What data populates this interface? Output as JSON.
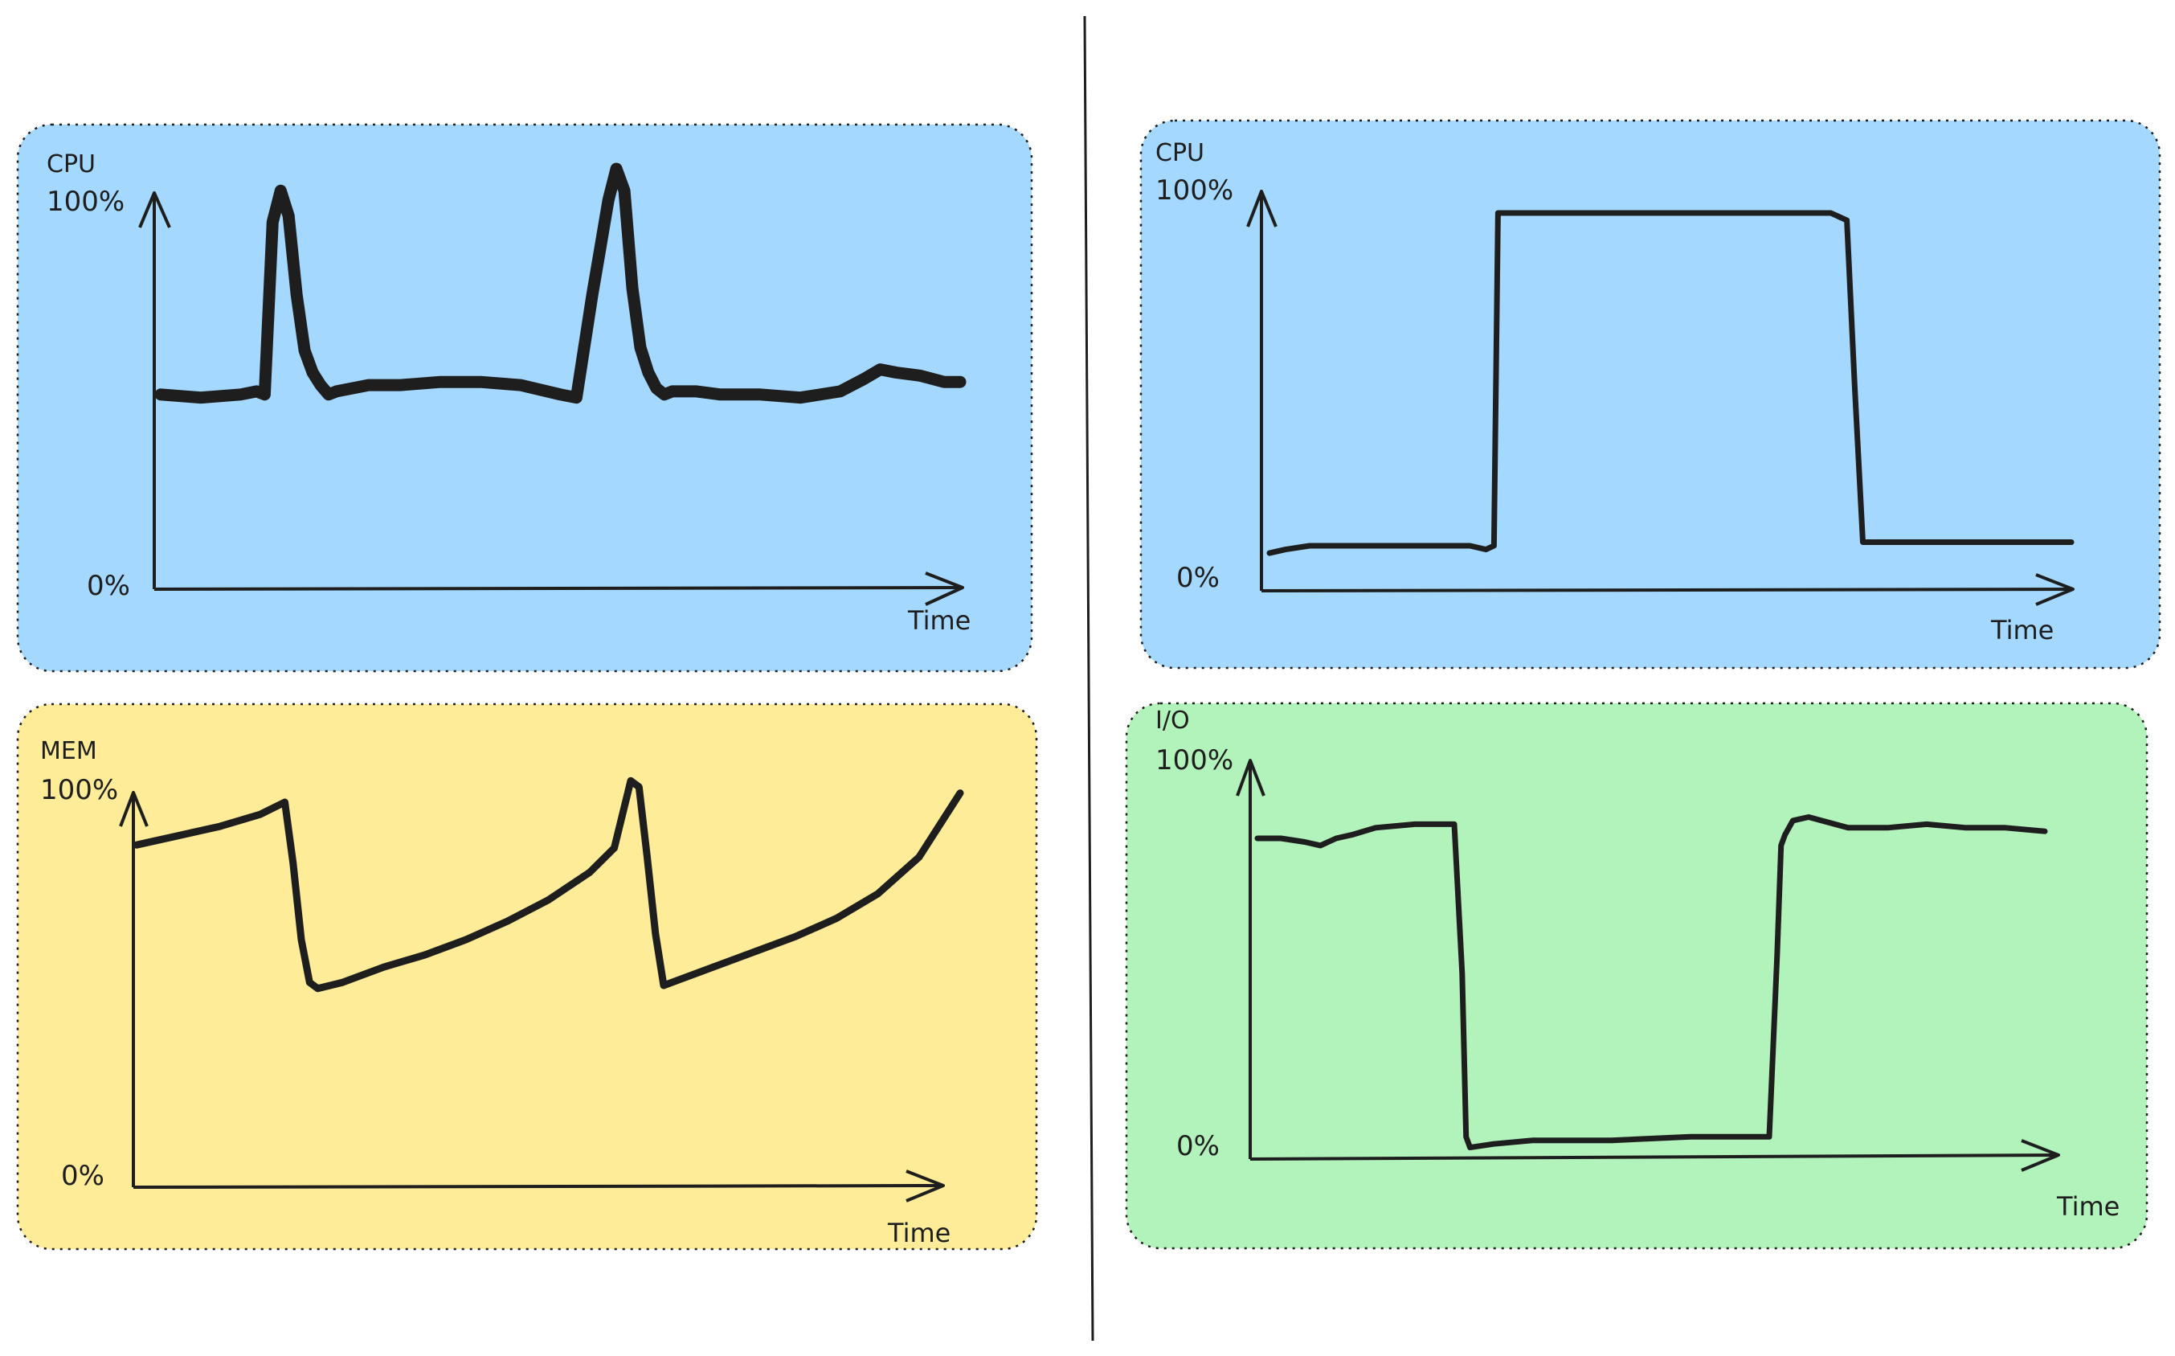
{
  "colors": {
    "cpu_panel": "#a5d8ff",
    "mem_panel": "#ffec99",
    "io_panel": "#b2f2bb",
    "stroke": "#1e1e1e",
    "divider": "#1e1e1e"
  },
  "chart_data": [
    {
      "type": "line",
      "title": "CPU",
      "xlabel": "Time",
      "y_top_label": "100%",
      "y_bottom_label": "0%",
      "ylim": [
        0,
        100
      ],
      "xlim": [
        0,
        100
      ],
      "series": [
        {
          "x": [
            0,
            5,
            10,
            12,
            13,
            14,
            15,
            16,
            17,
            18,
            19,
            20,
            21,
            22,
            24,
            26,
            30,
            35,
            40,
            45,
            50,
            52,
            54,
            55,
            56,
            57,
            58,
            59,
            60,
            61,
            62,
            63,
            64,
            65,
            67,
            70,
            75,
            80,
            85,
            88,
            90,
            92,
            95,
            98,
            100
          ],
          "y": [
            28,
            27,
            28,
            29,
            28,
            83,
            93,
            85,
            60,
            42,
            35,
            31,
            28,
            29,
            30,
            31,
            31,
            32,
            32,
            31,
            28,
            27,
            60,
            75,
            90,
            100,
            93,
            62,
            43,
            35,
            30,
            28,
            29,
            29,
            29,
            28,
            28,
            27,
            29,
            33,
            36,
            35,
            34,
            32,
            32
          ]
        }
      ]
    },
    {
      "type": "line",
      "title": "MEM",
      "xlabel": "Time",
      "y_top_label": "100%",
      "y_bottom_label": "0%",
      "ylim": [
        0,
        100
      ],
      "xlim": [
        0,
        100
      ],
      "series": [
        {
          "x": [
            0,
            5,
            10,
            15,
            18,
            19,
            20,
            21,
            22,
            25,
            30,
            35,
            40,
            45,
            50,
            55,
            58,
            60,
            61,
            62,
            63,
            64,
            65,
            70,
            75,
            80,
            85,
            90,
            95,
            100
          ],
          "y": [
            76,
            79,
            82,
            86,
            90,
            70,
            45,
            31,
            29,
            31,
            36,
            40,
            45,
            51,
            58,
            67,
            75,
            97,
            95,
            72,
            47,
            30,
            31,
            36,
            41,
            46,
            52,
            60,
            72,
            93
          ]
        }
      ]
    },
    {
      "type": "line",
      "title": "CPU",
      "xlabel": "Time",
      "y_top_label": "100%",
      "y_bottom_label": "0%",
      "ylim": [
        0,
        100
      ],
      "xlim": [
        0,
        100
      ],
      "series": [
        {
          "x": [
            0,
            2,
            5,
            10,
            20,
            25,
            27,
            28,
            28.5,
            30,
            40,
            50,
            60,
            70,
            72,
            73,
            74,
            75,
            80,
            90,
            96,
            98,
            100
          ],
          "y": [
            7,
            8,
            9,
            9,
            9,
            9,
            8,
            9,
            100,
            100,
            100,
            100,
            100,
            100,
            98,
            52,
            10,
            10,
            10,
            10,
            10,
            10,
            10
          ]
        }
      ]
    },
    {
      "type": "line",
      "title": "I/O",
      "xlabel": "Time",
      "y_top_label": "100%",
      "y_bottom_label": "0%",
      "ylim": [
        0,
        100
      ],
      "xlim": [
        0,
        100
      ],
      "series": [
        {
          "x": [
            0,
            3,
            6,
            8,
            10,
            12,
            15,
            20,
            25,
            26,
            26.5,
            27,
            30,
            35,
            45,
            55,
            65,
            66,
            66.5,
            67,
            68,
            70,
            75,
            80,
            85,
            90,
            95,
            100
          ],
          "y": [
            88,
            88,
            87,
            86,
            88,
            89,
            91,
            92,
            92,
            50,
            4,
            1,
            2,
            3,
            3,
            4,
            4,
            55,
            86,
            89,
            93,
            94,
            91,
            91,
            92,
            91,
            91,
            90
          ]
        }
      ]
    }
  ]
}
